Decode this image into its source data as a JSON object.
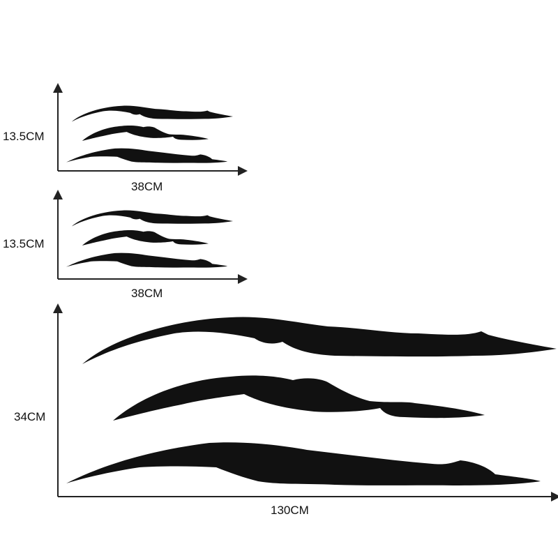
{
  "panels": [
    {
      "height_label": "13.5CM",
      "width_label": "38CM"
    },
    {
      "height_label": "13.5CM",
      "width_label": "38CM"
    },
    {
      "height_label": "34CM",
      "width_label": "130CM"
    }
  ],
  "colors": {
    "decal": "#111111",
    "axis": "#222222"
  }
}
